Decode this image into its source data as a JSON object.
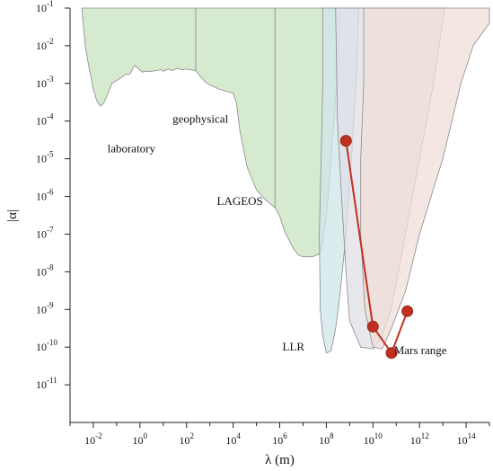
{
  "chart_data": {
    "type": "area",
    "xlabel": "λ (m)",
    "ylabel": "|α|",
    "x_scale": "log",
    "y_scale": "log",
    "xlim": [
      0.001,
      1000000000000000.0
    ],
    "ylim": [
      1e-12,
      0.1
    ],
    "x_ticks": [
      {
        "value": 0.01,
        "base": "10",
        "exp": "-2"
      },
      {
        "value": 1,
        "base": "10",
        "exp": "0"
      },
      {
        "value": 100,
        "base": "10",
        "exp": "2"
      },
      {
        "value": 10000,
        "base": "10",
        "exp": "4"
      },
      {
        "value": 1000000,
        "base": "10",
        "exp": "6"
      },
      {
        "value": 100000000,
        "base": "10",
        "exp": "8"
      },
      {
        "value": 10000000000,
        "base": "10",
        "exp": "10"
      },
      {
        "value": 1000000000000,
        "base": "10",
        "exp": "12"
      },
      {
        "value": 100000000000000,
        "base": "10",
        "exp": "14"
      }
    ],
    "y_ticks": [
      {
        "value": 0.1,
        "base": "10",
        "exp": "-1"
      },
      {
        "value": 0.01,
        "base": "10",
        "exp": "-2"
      },
      {
        "value": 0.001,
        "base": "10",
        "exp": "-3"
      },
      {
        "value": 0.0001,
        "base": "10",
        "exp": "-4"
      },
      {
        "value": 1e-05,
        "base": "10",
        "exp": "-5"
      },
      {
        "value": 1e-06,
        "base": "10",
        "exp": "-6"
      },
      {
        "value": 1e-07,
        "base": "10",
        "exp": "-7"
      },
      {
        "value": 1e-08,
        "base": "10",
        "exp": "-8"
      },
      {
        "value": 1e-09,
        "base": "10",
        "exp": "-9"
      },
      {
        "value": 1e-10,
        "base": "10",
        "exp": "-10"
      },
      {
        "value": 1e-11,
        "base": "10",
        "exp": "-11"
      }
    ],
    "regions": [
      {
        "label": "laboratory",
        "color": "#d6ead0",
        "edge": "#8a8a8a",
        "boundary": [
          [
            0.0032,
            0.1
          ],
          [
            0.0045,
            0.01
          ],
          [
            0.0063,
            0.003
          ],
          [
            0.01,
            0.0007
          ],
          [
            0.014,
            0.00035
          ],
          [
            0.02,
            0.00025
          ],
          [
            0.028,
            0.0003
          ],
          [
            0.04,
            0.0005
          ],
          [
            0.063,
            0.001
          ],
          [
            0.1,
            0.0012
          ],
          [
            0.18,
            0.0015
          ],
          [
            0.25,
            0.0018
          ],
          [
            0.32,
            0.0017
          ],
          [
            0.4,
            0.0019
          ],
          [
            0.5,
            0.0025
          ],
          [
            0.63,
            0.003
          ],
          [
            0.89,
            0.0024
          ],
          [
            1.26,
            0.002
          ],
          [
            2,
            0.0021
          ],
          [
            3.2,
            0.0021
          ],
          [
            5,
            0.0022
          ],
          [
            8,
            0.0023
          ],
          [
            10,
            0.0021
          ],
          [
            16,
            0.0024
          ],
          [
            25,
            0.0022
          ],
          [
            40,
            0.0025
          ],
          [
            63,
            0.0023
          ],
          [
            100,
            0.0024
          ],
          [
            160,
            0.0023
          ],
          [
            250,
            0.0022
          ]
        ]
      },
      {
        "label": "geophysical",
        "color": "#d6ead0",
        "edge": "#8a8a8a",
        "boundary": [
          [
            250,
            0.0022
          ],
          [
            400,
            0.0015
          ],
          [
            630,
            0.0011
          ],
          [
            1000,
            0.0009
          ],
          [
            1600,
            0.0008
          ],
          [
            2500,
            0.0007
          ],
          [
            4000,
            0.00065
          ],
          [
            6300,
            0.0006
          ],
          [
            10000,
            0.00055
          ],
          [
            14000,
            0.0003
          ],
          [
            20000,
            5e-05
          ],
          [
            40000,
            6e-06
          ],
          [
            100000,
            1.5e-06
          ],
          [
            250000,
            8e-07
          ],
          [
            630000,
            5e-07
          ]
        ]
      },
      {
        "label": "LAGEOS",
        "color": "#d6ead0",
        "edge": "#8a8a8a",
        "boundary": [
          [
            630000,
            5e-07
          ],
          [
            1000000,
            3e-07
          ],
          [
            1600000,
            1.2e-07
          ],
          [
            2500000,
            7e-08
          ],
          [
            4000000,
            4e-08
          ],
          [
            6300000,
            2.8e-08
          ],
          [
            10000000,
            2.5e-08
          ],
          [
            25000000,
            2.5e-08
          ],
          [
            50000000,
            3e-08
          ],
          [
            70000000,
            6e-08
          ],
          [
            100000000,
            3e-07
          ],
          [
            140000000,
            3e-06
          ],
          [
            200000000,
            6e-05
          ],
          [
            300000000,
            0.002
          ],
          [
            400000000,
            0.1
          ]
        ]
      },
      {
        "label": "LLR",
        "color": "#cfe5ea",
        "edge": "#8a8a8a",
        "boundary": [
          [
            70000000,
            0.1
          ],
          [
            70000000,
            0.001
          ],
          [
            60000000,
            1e-05
          ],
          [
            50000000,
            1e-07
          ],
          [
            55000000,
            1e-09
          ],
          [
            70000000,
            2e-10
          ],
          [
            100000000,
            7e-11
          ],
          [
            160000000,
            8e-11
          ],
          [
            250000000,
            3e-10
          ],
          [
            400000000,
            3e-09
          ],
          [
            700000000,
            1e-07
          ],
          [
            1200000000,
            1e-05
          ],
          [
            2000000000,
            0.002
          ],
          [
            2500000000,
            0.1
          ]
        ]
      },
      {
        "label": "",
        "color": "#e0dfe6",
        "edge": "#8a8a8a",
        "boundary": [
          [
            250000000,
            0.1
          ],
          [
            300000000,
            0.0001
          ],
          [
            450000000,
            1e-06
          ],
          [
            700000000,
            1e-08
          ],
          [
            1000000000,
            5e-10
          ],
          [
            3000000000,
            1e-10
          ],
          [
            10000000000,
            9e-11
          ],
          [
            25000000000,
            2e-10
          ],
          [
            60000000000,
            1e-09
          ],
          [
            250000000000,
            1e-07
          ],
          [
            1000000000000,
            1e-05
          ],
          [
            4000000000000,
            0.001
          ],
          [
            12000000000000,
            0.1
          ]
        ]
      },
      {
        "label": "Mars range",
        "color": "#f0ddd8",
        "edge": "#8a8a8a",
        "boundary": [
          [
            4000000000,
            0.1
          ],
          [
            4000000000,
            0.001
          ],
          [
            3000000000,
            1e-05
          ],
          [
            3000000000,
            1e-07
          ],
          [
            4500000000,
            1e-09
          ],
          [
            10000000000,
            1e-10
          ],
          [
            25000000000,
            9e-11
          ],
          [
            60000000000,
            3e-10
          ],
          [
            250000000000,
            3e-09
          ],
          [
            1000000000000,
            1e-07
          ],
          [
            10000000000000,
            1e-05
          ],
          [
            60000000000000,
            0.001
          ],
          [
            200000000000000,
            0.01
          ],
          [
            1000000000000000,
            0.04
          ]
        ]
      }
    ],
    "series": [
      {
        "type": "line",
        "color": "#c03020",
        "points": [
          [
            700000000,
            3e-05
          ],
          [
            10000000000,
            3.5e-10
          ],
          [
            63000000000,
            7e-11
          ],
          [
            300000000000,
            9e-10
          ]
        ]
      }
    ],
    "annotations": [
      {
        "text": "laboratory",
        "x": 0.04,
        "y": 1.5e-05
      },
      {
        "text": "geophysical",
        "x": 25,
        "y": 9e-05
      },
      {
        "text": "LAGEOS",
        "x": 2000,
        "y": 6e-07
      },
      {
        "text": "LLR",
        "x": 1300000,
        "y": 8e-11
      },
      {
        "text": "Mars range",
        "x": 80000000000,
        "y": 6.5e-11
      }
    ]
  }
}
